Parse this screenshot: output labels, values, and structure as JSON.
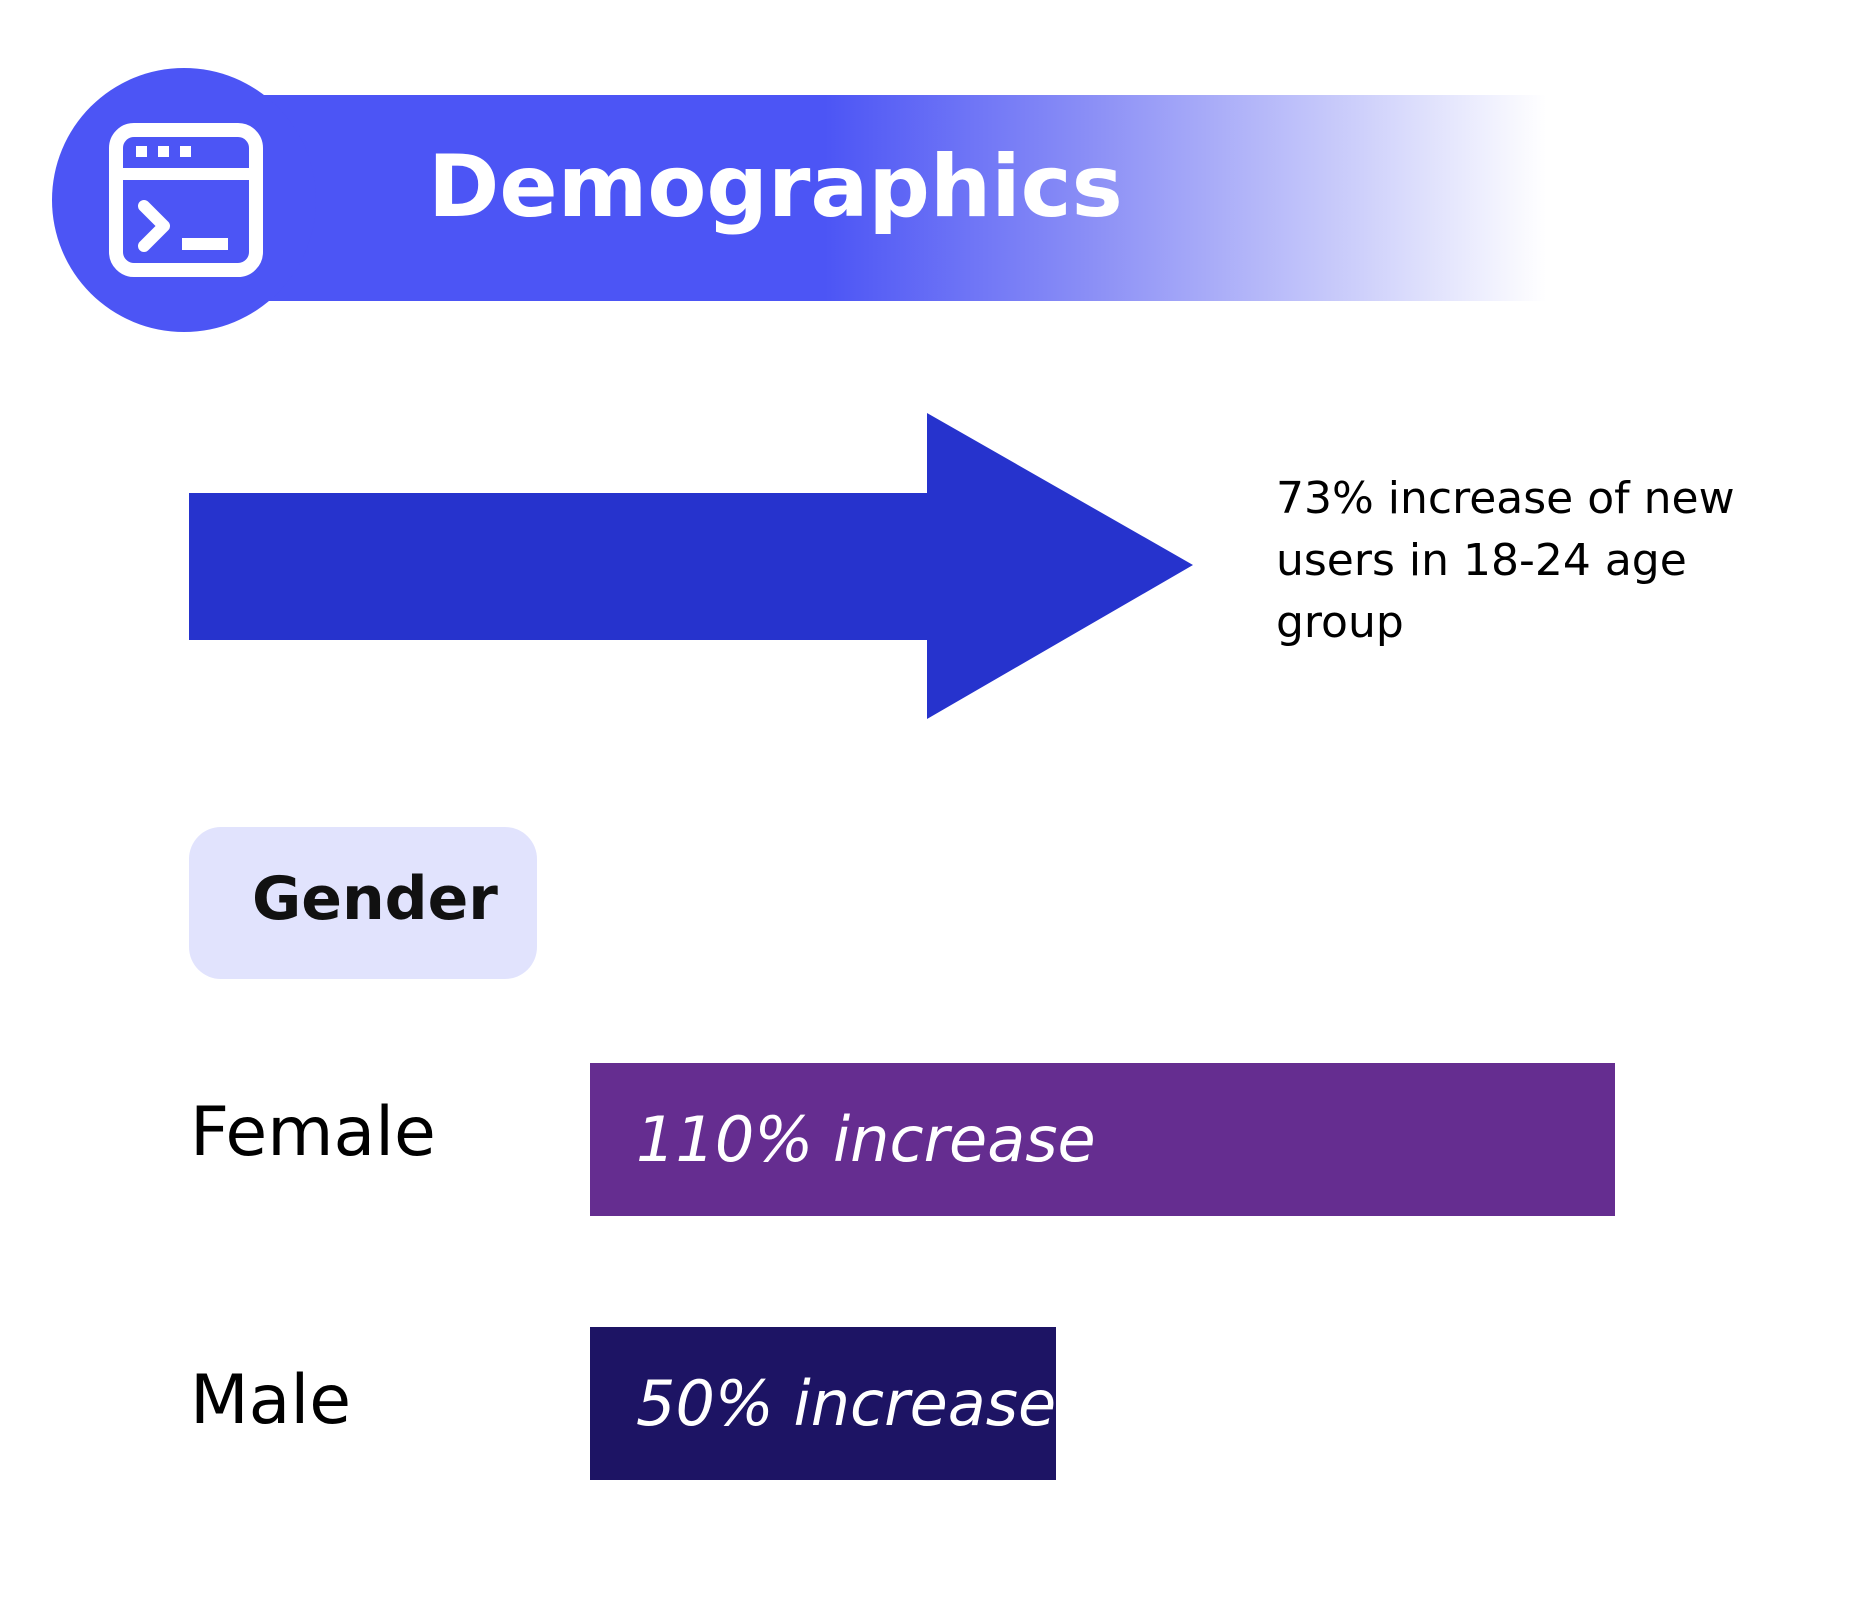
{
  "header": {
    "title": "Demographics",
    "icon": "terminal-window-icon",
    "accent_color": "#4c55f5"
  },
  "callout": {
    "text": "73% increase of new users in 18-24 age group",
    "arrow_color": "#2633cd"
  },
  "section": {
    "label": "Gender",
    "chip_color": "#e1e3fd"
  },
  "chart_data": {
    "type": "bar",
    "orientation": "horizontal",
    "title": "Gender",
    "categories": [
      "Female",
      "Male"
    ],
    "values": [
      110,
      50
    ],
    "unit": "%",
    "data_labels": [
      "110% increase",
      "50% increase"
    ],
    "colors": [
      "#652d90",
      "#1d1464"
    ],
    "grid": false
  }
}
